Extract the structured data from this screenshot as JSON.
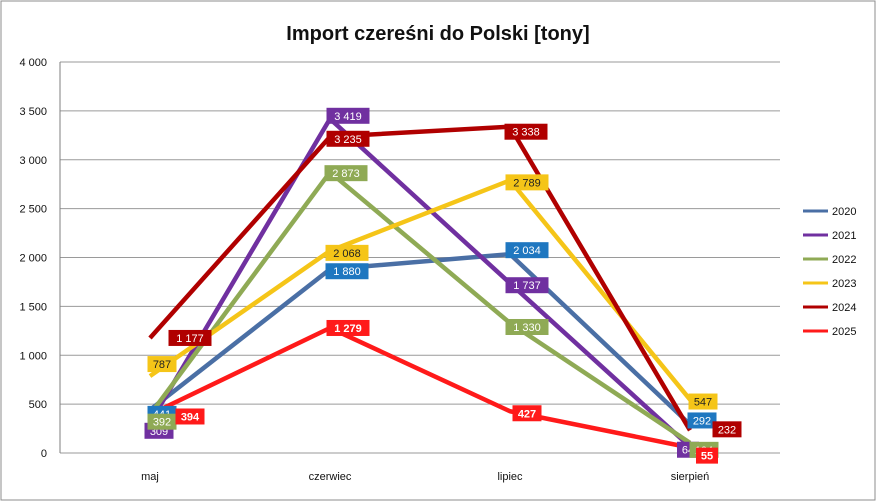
{
  "chart_data": {
    "type": "line",
    "title": "Import czereśni do Polski [tony]",
    "categories": [
      "maj",
      "czerwiec",
      "lipiec",
      "sierpień"
    ],
    "ylim": [
      0,
      4000
    ],
    "yticks": [
      0,
      500,
      1000,
      1500,
      2000,
      2500,
      3000,
      3500,
      4000
    ],
    "ytick_labels": [
      "0",
      "500",
      "1 000",
      "1 500",
      "2 000",
      "2 500",
      "3 000",
      "3 500",
      "4 000"
    ],
    "grid": "horizontal",
    "legend_position": "right",
    "series": [
      {
        "name": "2020",
        "color": "#4A6FA5",
        "label_bg": "#1F77C0",
        "values": [
          441,
          1880,
          2034,
          292
        ],
        "labels": [
          "441",
          "1 880",
          "2 034",
          "292"
        ]
      },
      {
        "name": "2021",
        "color": "#7030A0",
        "label_bg": "#7030A0",
        "values": [
          309,
          3419,
          1737,
          64
        ],
        "labels": [
          "309",
          "3 419",
          "1 737",
          "64"
        ]
      },
      {
        "name": "2022",
        "color": "#8FAA55",
        "label_bg": "#8FAA55",
        "values": [
          392,
          2873,
          1330,
          104
        ],
        "labels": [
          "392",
          "2 873",
          "1 330",
          "104"
        ]
      },
      {
        "name": "2023",
        "color": "#F5C518",
        "label_bg": "#F5C518",
        "values": [
          787,
          2068,
          2789,
          547
        ],
        "labels": [
          "787",
          "2 068",
          "2 789",
          "547"
        ]
      },
      {
        "name": "2024",
        "color": "#B00000",
        "label_bg": "#B00000",
        "values": [
          1177,
          3235,
          3338,
          232
        ],
        "labels": [
          "1 177",
          "3 235",
          "3 338",
          "232"
        ]
      },
      {
        "name": "2025",
        "color": "#FF1A1A",
        "label_bg": "#FF1A1A",
        "values": [
          394,
          1279,
          427,
          55
        ],
        "labels": [
          "394",
          "1 279",
          "427",
          "55"
        ]
      }
    ]
  }
}
